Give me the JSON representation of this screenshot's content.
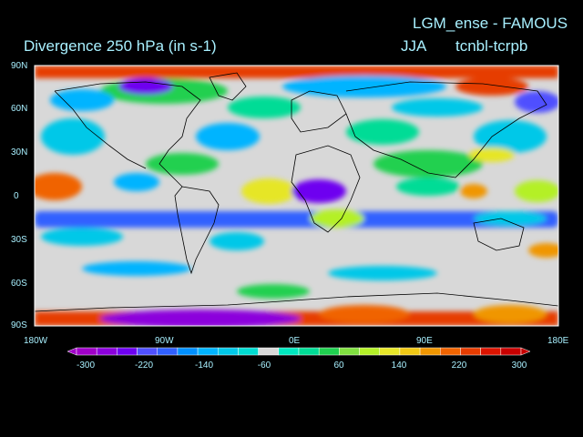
{
  "header": {
    "experiment_title": "LGM_ense - FAMOUS",
    "variable_title": "Divergence   250 hPa  (in s-1)",
    "season": "JJA",
    "experiment_code": "tcnbl-tcrpb"
  },
  "axes": {
    "lat_labels": [
      "90N",
      "60N",
      "30N",
      "0",
      "30S",
      "60S",
      "90S"
    ],
    "lon_labels": [
      "180W",
      "90W",
      "0E",
      "90E",
      "180E"
    ]
  },
  "colorbar": {
    "labels": [
      "-300",
      "-220",
      "-140",
      "-60",
      "60",
      "140",
      "220",
      "300"
    ],
    "colors": [
      "#a000c8",
      "#8c00dc",
      "#6e00f0",
      "#5050ff",
      "#3060ff",
      "#0090ff",
      "#00b4ff",
      "#00c8e8",
      "#00dcd2",
      "#d8d8d8",
      "#00e8c0",
      "#00dc96",
      "#20d050",
      "#80e040",
      "#b4f028",
      "#e6e628",
      "#f0c814",
      "#f09600",
      "#f06400",
      "#e63c00",
      "#dc1400",
      "#c80000"
    ]
  },
  "palette": {
    "background": "#000000",
    "land_neutral": "#d8d8d8",
    "text": "#a8f0ff"
  }
}
